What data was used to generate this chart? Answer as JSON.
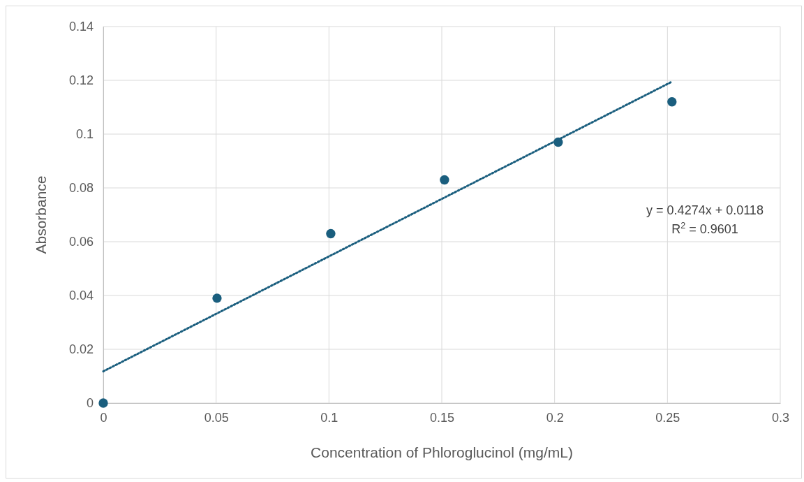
{
  "chart_data": {
    "type": "scatter",
    "xlabel": "Concentration of Phloroglucinol (mg/mL)",
    "ylabel": "Absorbance",
    "x": [
      0,
      0.0504,
      0.1008,
      0.1512,
      0.2016,
      0.252
    ],
    "series": [
      {
        "color": "#1a5e7e",
        "values": [
          0,
          0.039,
          0.063,
          0.083,
          0.097,
          0.112
        ],
        "marker": "circle"
      },
      {
        "type": "line",
        "color": "#1a5e7e",
        "line_style": "dotted",
        "marker": "none",
        "x": [
          0,
          0.252
        ],
        "values": [
          0.0118,
          0.1195
        ]
      }
    ],
    "xlim": [
      0,
      0.3
    ],
    "xticks": [
      0,
      0.05,
      0.1,
      0.15,
      0.2,
      0.25,
      0.3
    ],
    "ylim": [
      0,
      0.14
    ],
    "yticks": [
      0,
      0.02,
      0.04,
      0.06,
      0.08,
      0.1,
      0.12,
      0.14
    ],
    "grid": true,
    "annotations": [
      "y = 0.4274x + 0.0118",
      "R$^{2}$ = 0.9601"
    ]
  }
}
